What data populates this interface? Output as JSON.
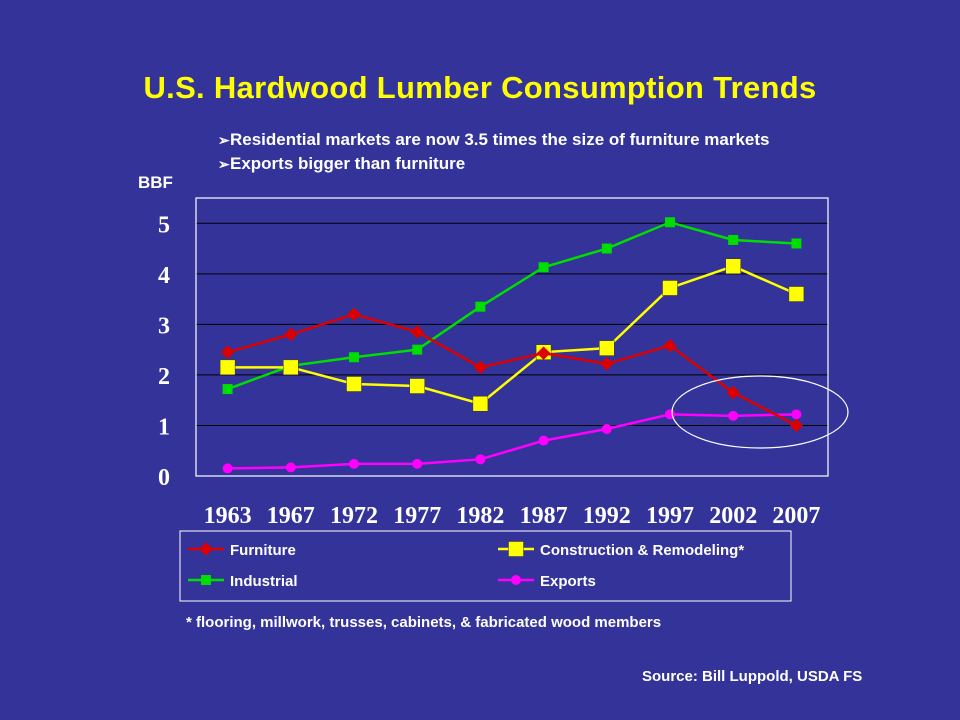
{
  "title": "U.S. Hardwood Lumber Consumption Trends",
  "bullets": [
    "Residential markets are now 3.5 times the size of furniture markets",
    "Exports bigger than furniture"
  ],
  "footnote": "* flooring, millwork, trusses, cabinets, & fabricated wood members",
  "source": "Source: Bill Luppold, USDA FS",
  "colors": {
    "background": "#333399",
    "title": "#FFFF00",
    "furniture": "#DD0000",
    "construction": "#FFFF00",
    "industrial": "#00DD00",
    "exports": "#FF00FF"
  },
  "chart_data": {
    "type": "line",
    "ylabel": "BBF",
    "ylim": [
      0,
      5.5
    ],
    "yticks": [
      0,
      1,
      2,
      3,
      4,
      5
    ],
    "grid": true,
    "legend_position": "bottom",
    "x": [
      "1963",
      "1967",
      "1972",
      "1977",
      "1982",
      "1987",
      "1992",
      "1997",
      "2002",
      "2007"
    ],
    "series": [
      {
        "name": "Furniture",
        "color": "#DD0000",
        "marker": "diamond",
        "values": [
          2.45,
          2.8,
          3.2,
          2.85,
          2.15,
          2.43,
          2.22,
          2.58,
          1.65,
          1.0
        ]
      },
      {
        "name": "Construction & Remodeling*",
        "color": "#FFFF00",
        "marker": "square-large",
        "values": [
          2.15,
          2.15,
          1.82,
          1.78,
          1.43,
          2.45,
          2.53,
          3.72,
          4.15,
          3.6
        ]
      },
      {
        "name": "Industrial",
        "color": "#00DD00",
        "marker": "square",
        "values": [
          1.72,
          2.18,
          2.35,
          2.5,
          3.35,
          4.13,
          4.5,
          5.02,
          4.67,
          4.6
        ]
      },
      {
        "name": "Exports",
        "color": "#FF00FF",
        "marker": "circle",
        "values": [
          0.15,
          0.17,
          0.24,
          0.24,
          0.33,
          0.7,
          0.93,
          1.22,
          1.19,
          1.22
        ]
      }
    ],
    "annotations": [
      {
        "type": "ellipse",
        "label": "highlight",
        "around": "Exports vs Furniture 2002-2007"
      }
    ]
  }
}
